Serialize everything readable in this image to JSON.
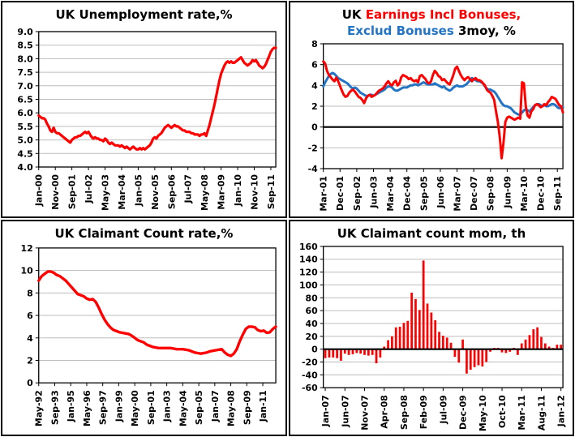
{
  "colors": {
    "red": "#FF0000",
    "blue": "#2374C4",
    "black": "#000000",
    "grid": "#BDBDBD",
    "panel_border": "#000000",
    "background": "#FFFFFF"
  },
  "chart_data": [
    {
      "id": "unemployment",
      "type": "line",
      "title": "UK Unemployment rate,%",
      "ylim": [
        4.0,
        9.0
      ],
      "y_ticks": [
        "9.0",
        "8.5",
        "8.0",
        "7.5",
        "7.0",
        "6.5",
        "6.0",
        "5.5",
        "5.0",
        "4.5",
        "4.0"
      ],
      "x_start": "Jan-00",
      "x_end": "Dec-11",
      "x_step_months": 1,
      "x_tick_interval_months": 10,
      "x_tick_labels": [
        "Jan-00",
        "Nov-00",
        "Sep-01",
        "Jul-02",
        "May-03",
        "Mar-04",
        "Jan-05",
        "Nov-05",
        "Sep-06",
        "Jul-07",
        "May-08",
        "Mar-09",
        "Jan-10",
        "Nov-10",
        "Sep-11"
      ],
      "grid": true,
      "series": [
        {
          "name": "Unemployment rate",
          "color_key": "red",
          "values": [
            5.9,
            5.85,
            5.8,
            5.8,
            5.75,
            5.6,
            5.5,
            5.35,
            5.3,
            5.45,
            5.3,
            5.25,
            5.25,
            5.2,
            5.15,
            5.1,
            5.05,
            5.0,
            4.95,
            4.9,
            5.0,
            5.05,
            5.1,
            5.1,
            5.15,
            5.15,
            5.2,
            5.25,
            5.3,
            5.25,
            5.3,
            5.2,
            5.1,
            5.05,
            5.1,
            5.05,
            5.05,
            5.0,
            5.0,
            4.95,
            5.05,
            5.0,
            4.9,
            4.85,
            4.9,
            4.85,
            4.8,
            4.8,
            4.8,
            4.75,
            4.8,
            4.75,
            4.7,
            4.75,
            4.7,
            4.65,
            4.7,
            4.75,
            4.7,
            4.65,
            4.65,
            4.7,
            4.65,
            4.7,
            4.65,
            4.7,
            4.75,
            4.8,
            4.9,
            5.05,
            5.1,
            5.05,
            5.15,
            5.2,
            5.25,
            5.35,
            5.45,
            5.5,
            5.55,
            5.5,
            5.45,
            5.5,
            5.55,
            5.5,
            5.5,
            5.45,
            5.4,
            5.35,
            5.35,
            5.3,
            5.3,
            5.3,
            5.25,
            5.25,
            5.2,
            5.2,
            5.2,
            5.15,
            5.2,
            5.2,
            5.25,
            5.15,
            5.35,
            5.55,
            5.8,
            6.05,
            6.3,
            6.6,
            6.9,
            7.2,
            7.45,
            7.6,
            7.75,
            7.85,
            7.9,
            7.85,
            7.9,
            7.85,
            7.85,
            7.9,
            7.95,
            8.0,
            8.05,
            7.95,
            7.85,
            7.8,
            7.75,
            7.8,
            7.85,
            7.95,
            7.9,
            7.95,
            7.85,
            7.75,
            7.7,
            7.65,
            7.7,
            7.8,
            7.95,
            8.1,
            8.25,
            8.35,
            8.4,
            8.4
          ]
        }
      ]
    },
    {
      "id": "earnings",
      "type": "line",
      "title": "UK Earnings Incl Bonuses, Exclud Bonuses 3moy, %",
      "title_parts": [
        {
          "text": "UK ",
          "color_key": "black"
        },
        {
          "text": "Earnings Incl Bonuses,",
          "color_key": "red"
        },
        {
          "break": true
        },
        {
          "text": "Exclud Bonuses ",
          "color_key": "blue"
        },
        {
          "text": "3moy, %",
          "color_key": "black"
        }
      ],
      "ylim": [
        -4,
        8
      ],
      "y_ticks": [
        "8",
        "6",
        "4",
        "2",
        "0",
        "-2",
        "-4"
      ],
      "zero_line": true,
      "x_start": "Mar-01",
      "x_end": "Dec-11",
      "x_step_months": 1,
      "x_tick_interval_months": 9,
      "x_tick_labels": [
        "Mar-01",
        "Dec-01",
        "Sep-02",
        "Jun-03",
        "Mar-04",
        "Dec-04",
        "Sep-05",
        "Jun-06",
        "Mar-07",
        "Dec-07",
        "Sep-08",
        "Jun-09",
        "Mar-10",
        "Dec-10",
        "Sep-11"
      ],
      "grid": true,
      "series": [
        {
          "name": "Exclud Bonuses",
          "color_key": "blue",
          "values": [
            3.9,
            4.3,
            4.6,
            4.9,
            5.1,
            5.2,
            5.1,
            4.9,
            4.7,
            4.6,
            4.5,
            4.4,
            4.3,
            4.2,
            4.0,
            3.8,
            3.7,
            3.8,
            3.7,
            3.5,
            3.3,
            3.2,
            3.1,
            3.0,
            3.0,
            3.1,
            3.1,
            3.0,
            3.1,
            3.2,
            3.3,
            3.4,
            3.5,
            3.6,
            3.8,
            3.9,
            3.9,
            3.8,
            3.6,
            3.5,
            3.5,
            3.6,
            3.7,
            3.8,
            3.8,
            3.8,
            3.9,
            4.0,
            4.0,
            4.1,
            4.1,
            4.0,
            4.1,
            4.2,
            4.3,
            4.2,
            4.1,
            4.1,
            4.1,
            4.1,
            4.2,
            4.1,
            4.0,
            3.9,
            3.8,
            3.9,
            3.7,
            3.6,
            3.5,
            3.6,
            3.8,
            3.9,
            4.0,
            3.9,
            3.9,
            3.9,
            4.0,
            4.1,
            4.3,
            4.5,
            4.7,
            4.6,
            4.5,
            4.4,
            4.4,
            4.3,
            4.2,
            3.9,
            3.7,
            3.6,
            3.6,
            3.5,
            3.4,
            3.2,
            2.9,
            2.6,
            2.3,
            2.1,
            2.0,
            2.0,
            1.9,
            1.8,
            1.6,
            1.4,
            1.3,
            1.2,
            1.2,
            1.4,
            1.6,
            1.7,
            1.6,
            1.5,
            1.7,
            1.9,
            2.1,
            2.2,
            2.2,
            2.1,
            2.0,
            2.1,
            2.0,
            2.0,
            2.1,
            2.2,
            2.2,
            2.1,
            1.9,
            1.8,
            1.9,
            1.9
          ]
        },
        {
          "name": "Incl Bonuses",
          "color_key": "red",
          "values": [
            6.3,
            6.1,
            5.4,
            5.0,
            4.8,
            4.55,
            4.4,
            4.75,
            4.4,
            3.95,
            3.5,
            3.1,
            2.9,
            3.0,
            3.3,
            3.5,
            3.6,
            3.4,
            3.15,
            2.9,
            2.8,
            2.6,
            2.3,
            2.75,
            3.0,
            3.1,
            2.9,
            3.0,
            3.1,
            3.3,
            3.5,
            3.6,
            3.7,
            3.9,
            4.2,
            4.4,
            4.1,
            4.0,
            4.3,
            4.45,
            4.0,
            4.2,
            4.8,
            5.0,
            4.9,
            4.8,
            4.6,
            4.7,
            4.5,
            4.4,
            4.5,
            4.3,
            4.9,
            5.0,
            4.8,
            4.6,
            4.3,
            4.2,
            4.4,
            5.0,
            5.4,
            5.2,
            4.9,
            4.8,
            4.5,
            4.6,
            4.4,
            4.2,
            4.1,
            4.5,
            5.0,
            5.6,
            5.8,
            5.4,
            5.0,
            4.7,
            4.5,
            4.7,
            4.8,
            4.6,
            4.4,
            4.6,
            4.7,
            4.5,
            4.5,
            4.4,
            4.2,
            4.0,
            3.6,
            3.4,
            3.3,
            3.0,
            2.6,
            1.5,
            0.5,
            -1.0,
            -3.0,
            -1.5,
            0.5,
            0.9,
            1.0,
            0.9,
            0.8,
            0.7,
            0.8,
            0.9,
            0.8,
            4.3,
            4.2,
            2.0,
            1.1,
            0.9,
            1.5,
            1.7,
            2.1,
            2.2,
            2.1,
            1.9,
            2.0,
            2.2,
            2.1,
            2.4,
            2.6,
            2.9,
            2.8,
            2.7,
            2.4,
            2.1,
            2.0,
            1.4
          ]
        }
      ]
    },
    {
      "id": "claimant_rate",
      "type": "line",
      "title": "UK Claimant Count rate,%",
      "ylim": [
        0,
        12
      ],
      "y_ticks": [
        "12",
        "10",
        "8",
        "6",
        "4",
        "2",
        "0"
      ],
      "x_start": "May-92",
      "x_end": "Feb-12",
      "x_step_months": 3,
      "x_tick_interval_months": 16,
      "x_tick_labels": [
        "May-92",
        "Sep-93",
        "Jan-95",
        "May-96",
        "Sep-97",
        "Jan-99",
        "May-00",
        "Sep-01",
        "Jan-03",
        "May-04",
        "Sep-05",
        "Jan-07",
        "May-08",
        "Sep-09",
        "Jan-11"
      ],
      "grid": true,
      "series": [
        {
          "name": "Claimant Count rate",
          "color_key": "red",
          "values": [
            9.1,
            9.5,
            9.7,
            9.9,
            9.9,
            9.8,
            9.6,
            9.5,
            9.3,
            9.1,
            8.8,
            8.5,
            8.2,
            7.9,
            7.8,
            7.7,
            7.5,
            7.4,
            7.45,
            7.2,
            6.7,
            6.1,
            5.6,
            5.2,
            4.9,
            4.7,
            4.6,
            4.5,
            4.45,
            4.4,
            4.35,
            4.2,
            4.0,
            3.8,
            3.7,
            3.6,
            3.4,
            3.3,
            3.2,
            3.15,
            3.1,
            3.1,
            3.1,
            3.1,
            3.1,
            3.05,
            3.0,
            3.0,
            3.0,
            2.95,
            2.9,
            2.8,
            2.7,
            2.65,
            2.6,
            2.65,
            2.7,
            2.8,
            2.85,
            2.9,
            2.95,
            3.0,
            2.7,
            2.5,
            2.4,
            2.6,
            3.0,
            3.7,
            4.3,
            4.8,
            5.0,
            5.0,
            4.95,
            4.7,
            4.6,
            4.65,
            4.45,
            4.5,
            4.8,
            5.0
          ]
        }
      ]
    },
    {
      "id": "claimant_mom",
      "type": "bar",
      "title": "UK Claimant count mom, th",
      "ylim": [
        -60,
        160
      ],
      "y_ticks": [
        "160",
        "140",
        "120",
        "100",
        "80",
        "60",
        "40",
        "20",
        "0",
        "-20",
        "-40",
        "-60"
      ],
      "zero_line": true,
      "x_start": "Jan-07",
      "x_end": "Jan-12",
      "x_step_months": 1,
      "x_tick_interval_months": 5,
      "x_tick_labels": [
        "Jan-07",
        "Jun-07",
        "Nov-07",
        "Apr-08",
        "Sep-08",
        "Feb-09",
        "Jul-09",
        "Dec-09",
        "May-10",
        "Oct-10",
        "Mar-11",
        "Aug-11",
        "Jan-12"
      ],
      "grid": true,
      "series": [
        {
          "name": "Claimant count monthly change",
          "color_key": "red",
          "values": [
            -14,
            -13,
            -13,
            -14,
            -18,
            -7,
            -9,
            -8,
            -6,
            -7,
            -9,
            -10,
            -9,
            -22,
            -13,
            4,
            14,
            20,
            34,
            35,
            41,
            44,
            88,
            78,
            61,
            138,
            71,
            57,
            45,
            27,
            21,
            18,
            10,
            -12,
            -21,
            15,
            -38,
            -32,
            -28,
            -25,
            -27,
            -20,
            -4,
            2,
            2,
            -5,
            -6,
            -4,
            2,
            -9,
            9,
            15,
            22,
            31,
            34,
            19,
            9,
            4,
            2,
            7,
            7
          ]
        }
      ]
    }
  ]
}
